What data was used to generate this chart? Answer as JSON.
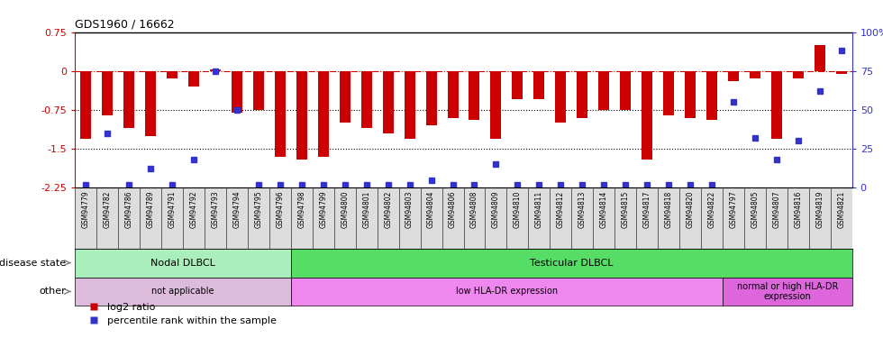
{
  "title": "GDS1960 / 16662",
  "samples": [
    "GSM94779",
    "GSM94782",
    "GSM94786",
    "GSM94789",
    "GSM94791",
    "GSM94792",
    "GSM94793",
    "GSM94794",
    "GSM94795",
    "GSM94796",
    "GSM94798",
    "GSM94799",
    "GSM94800",
    "GSM94801",
    "GSM94802",
    "GSM94803",
    "GSM94804",
    "GSM94806",
    "GSM94808",
    "GSM94809",
    "GSM94810",
    "GSM94811",
    "GSM94812",
    "GSM94813",
    "GSM94814",
    "GSM94815",
    "GSM94817",
    "GSM94818",
    "GSM94820",
    "GSM94822",
    "GSM94797",
    "GSM94805",
    "GSM94807",
    "GSM94816",
    "GSM94819",
    "GSM94821"
  ],
  "log2_ratio": [
    -1.3,
    -0.85,
    -1.1,
    -1.25,
    -0.15,
    -0.3,
    0.03,
    -0.8,
    -0.75,
    -1.65,
    -1.7,
    -1.65,
    -1.0,
    -1.1,
    -1.2,
    -1.3,
    -1.05,
    -0.9,
    -0.95,
    -1.3,
    -0.55,
    -0.55,
    -1.0,
    -0.9,
    -0.75,
    -0.75,
    -1.7,
    -0.85,
    -0.9,
    -0.95,
    -0.2,
    -0.15,
    -1.3,
    -0.15,
    0.5,
    -0.05
  ],
  "percentile": [
    2,
    35,
    2,
    12,
    2,
    18,
    75,
    50,
    2,
    2,
    2,
    2,
    2,
    2,
    2,
    2,
    5,
    2,
    2,
    15,
    2,
    2,
    2,
    2,
    2,
    2,
    2,
    2,
    2,
    2,
    55,
    32,
    18,
    30,
    62,
    88
  ],
  "ylim_left": [
    -2.25,
    0.75
  ],
  "ylim_right": [
    0,
    100
  ],
  "left_yticks": [
    0.75,
    0,
    -0.75,
    -1.5,
    -2.25
  ],
  "left_yticklabels": [
    "0.75",
    "0",
    "-0.75",
    "-1.5",
    "-2.25"
  ],
  "right_yticks": [
    100,
    75,
    50,
    25,
    0
  ],
  "right_yticklabels": [
    "100%",
    "75",
    "50",
    "25",
    "0"
  ],
  "dotted_lines": [
    -0.75,
    -1.5
  ],
  "bar_color": "#cc0000",
  "dot_color": "#3333cc",
  "zero_line_color": "#cc0000",
  "disease_state_labels": [
    {
      "label": "Nodal DLBCL",
      "start": 0,
      "end": 10,
      "color": "#aaeebb"
    },
    {
      "label": "Testicular DLBCL",
      "start": 10,
      "end": 36,
      "color": "#55dd66"
    }
  ],
  "other_labels": [
    {
      "label": "not applicable",
      "start": 0,
      "end": 10,
      "color": "#ddbbdd"
    },
    {
      "label": "low HLA-DR expression",
      "start": 10,
      "end": 30,
      "color": "#ee88ee"
    },
    {
      "label": "normal or high HLA-DR\nexpression",
      "start": 30,
      "end": 36,
      "color": "#dd66dd"
    }
  ],
  "legend_items": [
    {
      "label": "log2 ratio",
      "color": "#cc0000"
    },
    {
      "label": "percentile rank within the sample",
      "color": "#3333cc"
    }
  ]
}
